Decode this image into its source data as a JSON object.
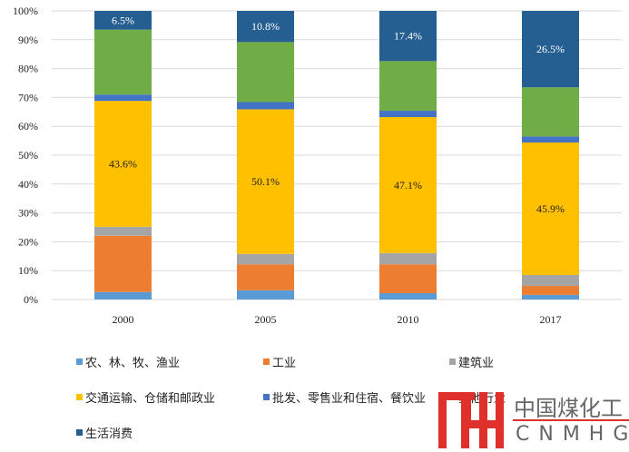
{
  "chart_data": {
    "type": "bar",
    "stacked": true,
    "categories": [
      "2000",
      "2005",
      "2010",
      "2017"
    ],
    "ylim": [
      0,
      100
    ],
    "yticks": [
      "0%",
      "10%",
      "20%",
      "30%",
      "40%",
      "50%",
      "60%",
      "70%",
      "80%",
      "90%",
      "100%"
    ],
    "grid": true,
    "legend_position": "bottom",
    "series": [
      {
        "name": "农、林、牧、渔业",
        "color": "#5B9BD5",
        "values": [
          2.6,
          3.2,
          2.2,
          1.6
        ]
      },
      {
        "name": "工业",
        "color": "#ED7D31",
        "values": [
          19.5,
          9.0,
          10.0,
          3.1
        ]
      },
      {
        "name": "建筑业",
        "color": "#A5A5A5",
        "values": [
          3.1,
          3.6,
          3.9,
          3.8
        ]
      },
      {
        "name": "交通运输、仓储和邮政业",
        "color": "#FFC000",
        "values": [
          43.6,
          50.1,
          47.1,
          45.9
        ],
        "labels": [
          "43.6%",
          "50.1%",
          "47.1%",
          "45.9%"
        ],
        "label_color": "#222222"
      },
      {
        "name": "批发、零售业和住宿、餐饮业",
        "color": "#4472C4",
        "values": [
          2.2,
          2.5,
          2.2,
          2.1
        ]
      },
      {
        "name": "其他行业",
        "color": "#70AD47",
        "values": [
          22.5,
          20.8,
          17.2,
          17.0
        ]
      },
      {
        "name": "生活消费",
        "color": "#255E91",
        "values": [
          6.5,
          10.8,
          17.4,
          26.5
        ],
        "labels": [
          "6.5%",
          "10.8%",
          "17.4%",
          "26.5%"
        ],
        "label_color": "#ffffff"
      }
    ]
  },
  "watermark": {
    "cn": "中国煤化工",
    "en": "CNMHG"
  }
}
